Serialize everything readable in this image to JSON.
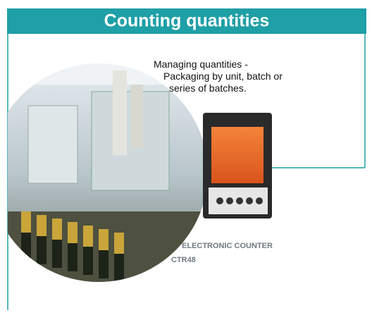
{
  "header": {
    "title": "Counting quantities"
  },
  "intro": {
    "lines": [
      "Managing quantities -",
      "Packaging by unit, batch or",
      "series of batches."
    ]
  },
  "product": {
    "name": "ELECTRONIC COUNTER",
    "model": "CTR48"
  }
}
